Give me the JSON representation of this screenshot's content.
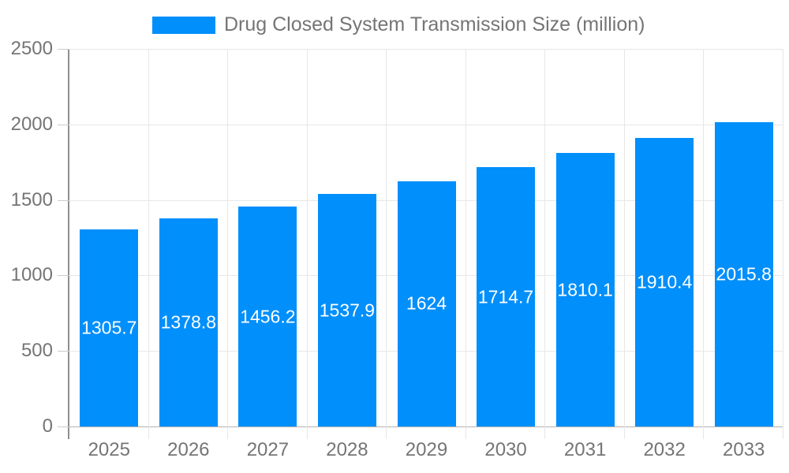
{
  "chart_data": {
    "type": "bar",
    "title": "Drug Closed System Transmission Size (million)",
    "xlabel": "",
    "ylabel": "",
    "categories": [
      "2025",
      "2026",
      "2027",
      "2028",
      "2029",
      "2030",
      "2031",
      "2032",
      "2033"
    ],
    "series": [
      {
        "name": "Drug Closed System Transmission Size (million)",
        "values": [
          1305.7,
          1378.8,
          1456.2,
          1537.9,
          1624,
          1714.7,
          1810.1,
          1910.4,
          2015.8
        ]
      }
    ],
    "ylim": [
      0,
      2500
    ],
    "yticks": [
      0,
      500,
      1000,
      1500,
      2000,
      2500
    ],
    "grid": "on",
    "legend_position": "top-center",
    "value_labels_position": "inside-center",
    "colors": {
      "bar": "#008FFB",
      "gridline": "#e7e7e7",
      "zero_line": "#b3b3b3",
      "axis_line": "#8f8f8f",
      "tick": "#cccccc",
      "axis_label": "#757575",
      "legend_label": "#757575",
      "value_label": "#ffffff",
      "background": "#ffffff"
    }
  }
}
